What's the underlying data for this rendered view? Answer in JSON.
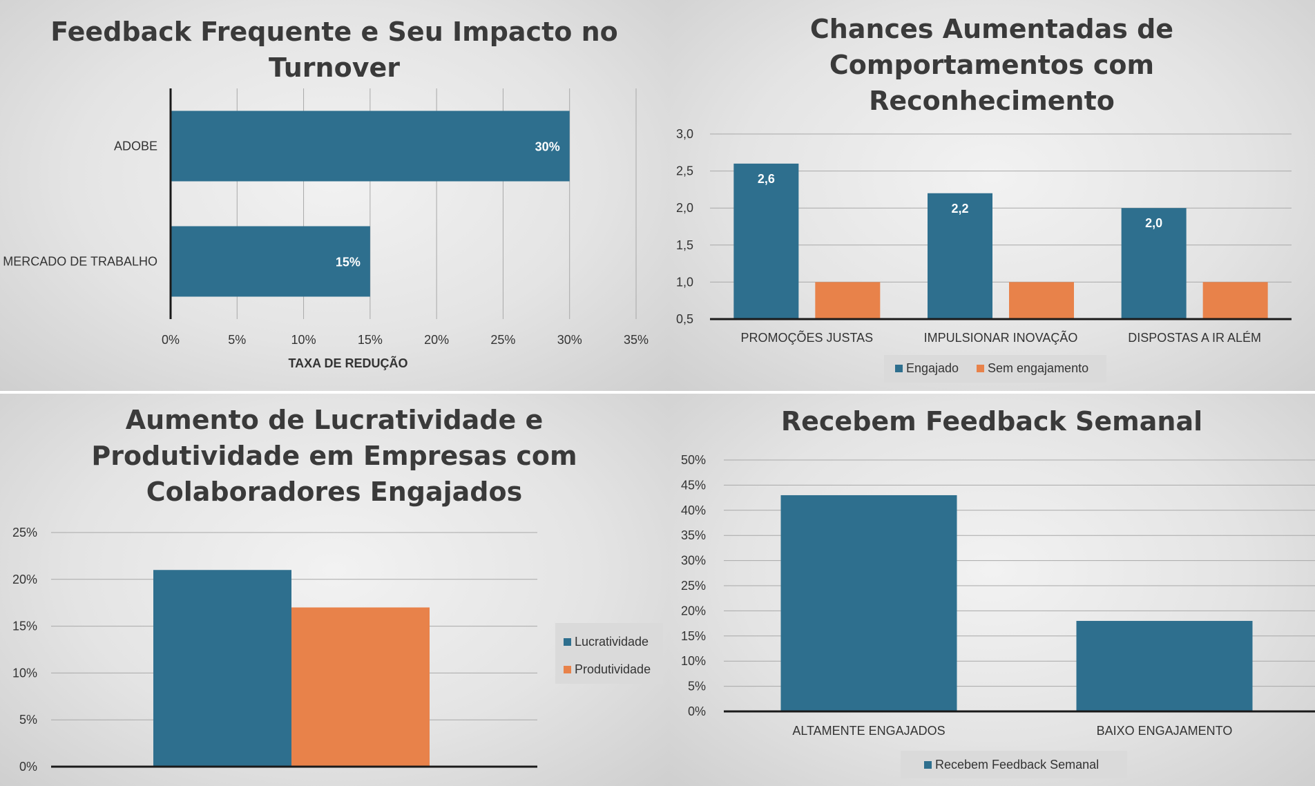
{
  "colors": {
    "engajado": "#2e6f8e",
    "sem_engajamento": "#e8824a",
    "grid": "#a8a8a8",
    "axis": "#1a1a1a",
    "text": "#333333"
  },
  "chart_data": [
    {
      "type": "bar",
      "orientation": "horizontal",
      "title": "Feedback Frequente e Seu Impacto no Turnover",
      "categories": [
        "ADOBE",
        "MERCADO DE TRABALHO"
      ],
      "values": [
        30,
        15
      ],
      "data_labels": [
        "30%",
        "15%"
      ],
      "xlabel": "TAXA DE REDUÇÃO",
      "ylabel": "",
      "xlim": [
        0,
        35
      ],
      "ticks": [
        "0%",
        "5%",
        "10%",
        "15%",
        "20%",
        "25%",
        "30%",
        "35%"
      ],
      "grid": true
    },
    {
      "type": "bar",
      "title": "Chances Aumentadas de Comportamentos com Reconhecimento",
      "categories": [
        "PROMOÇÕES JUSTAS",
        "IMPULSIONAR INOVAÇÃO",
        "DISPOSTAS A IR ALÉM"
      ],
      "series": [
        {
          "name": "Engajado",
          "values": [
            2.6,
            2.2,
            2.0
          ],
          "data_labels": [
            "2,6",
            "2,2",
            "2,0"
          ]
        },
        {
          "name": "Sem engajamento",
          "values": [
            1.0,
            1.0,
            1.0
          ]
        }
      ],
      "ylim": [
        0.5,
        3.0
      ],
      "ticks": [
        "0,5",
        "1,0",
        "1,5",
        "2,0",
        "2,5",
        "3,0"
      ],
      "legend": "bottom",
      "grid": true
    },
    {
      "type": "bar",
      "title": "Aumento de Lucratividade e Produtividade em Empresas com Colaboradores Engajados",
      "categories": [
        ""
      ],
      "series": [
        {
          "name": "Lucratividade",
          "values": [
            21
          ]
        },
        {
          "name": "Produtividade",
          "values": [
            17
          ]
        }
      ],
      "ylim": [
        0,
        25
      ],
      "ticks": [
        "0%",
        "5%",
        "10%",
        "15%",
        "20%",
        "25%"
      ],
      "legend": "right",
      "grid": true
    },
    {
      "type": "bar",
      "title": "Recebem Feedback Semanal",
      "categories": [
        "ALTAMENTE ENGAJADOS",
        "BAIXO ENGAJAMENTO"
      ],
      "series": [
        {
          "name": "Recebem Feedback Semanal",
          "values": [
            43,
            18
          ]
        }
      ],
      "ylim": [
        0,
        50
      ],
      "ticks": [
        "0%",
        "5%",
        "10%",
        "15%",
        "20%",
        "25%",
        "30%",
        "35%",
        "40%",
        "45%",
        "50%"
      ],
      "legend": "bottom",
      "grid": true
    }
  ]
}
